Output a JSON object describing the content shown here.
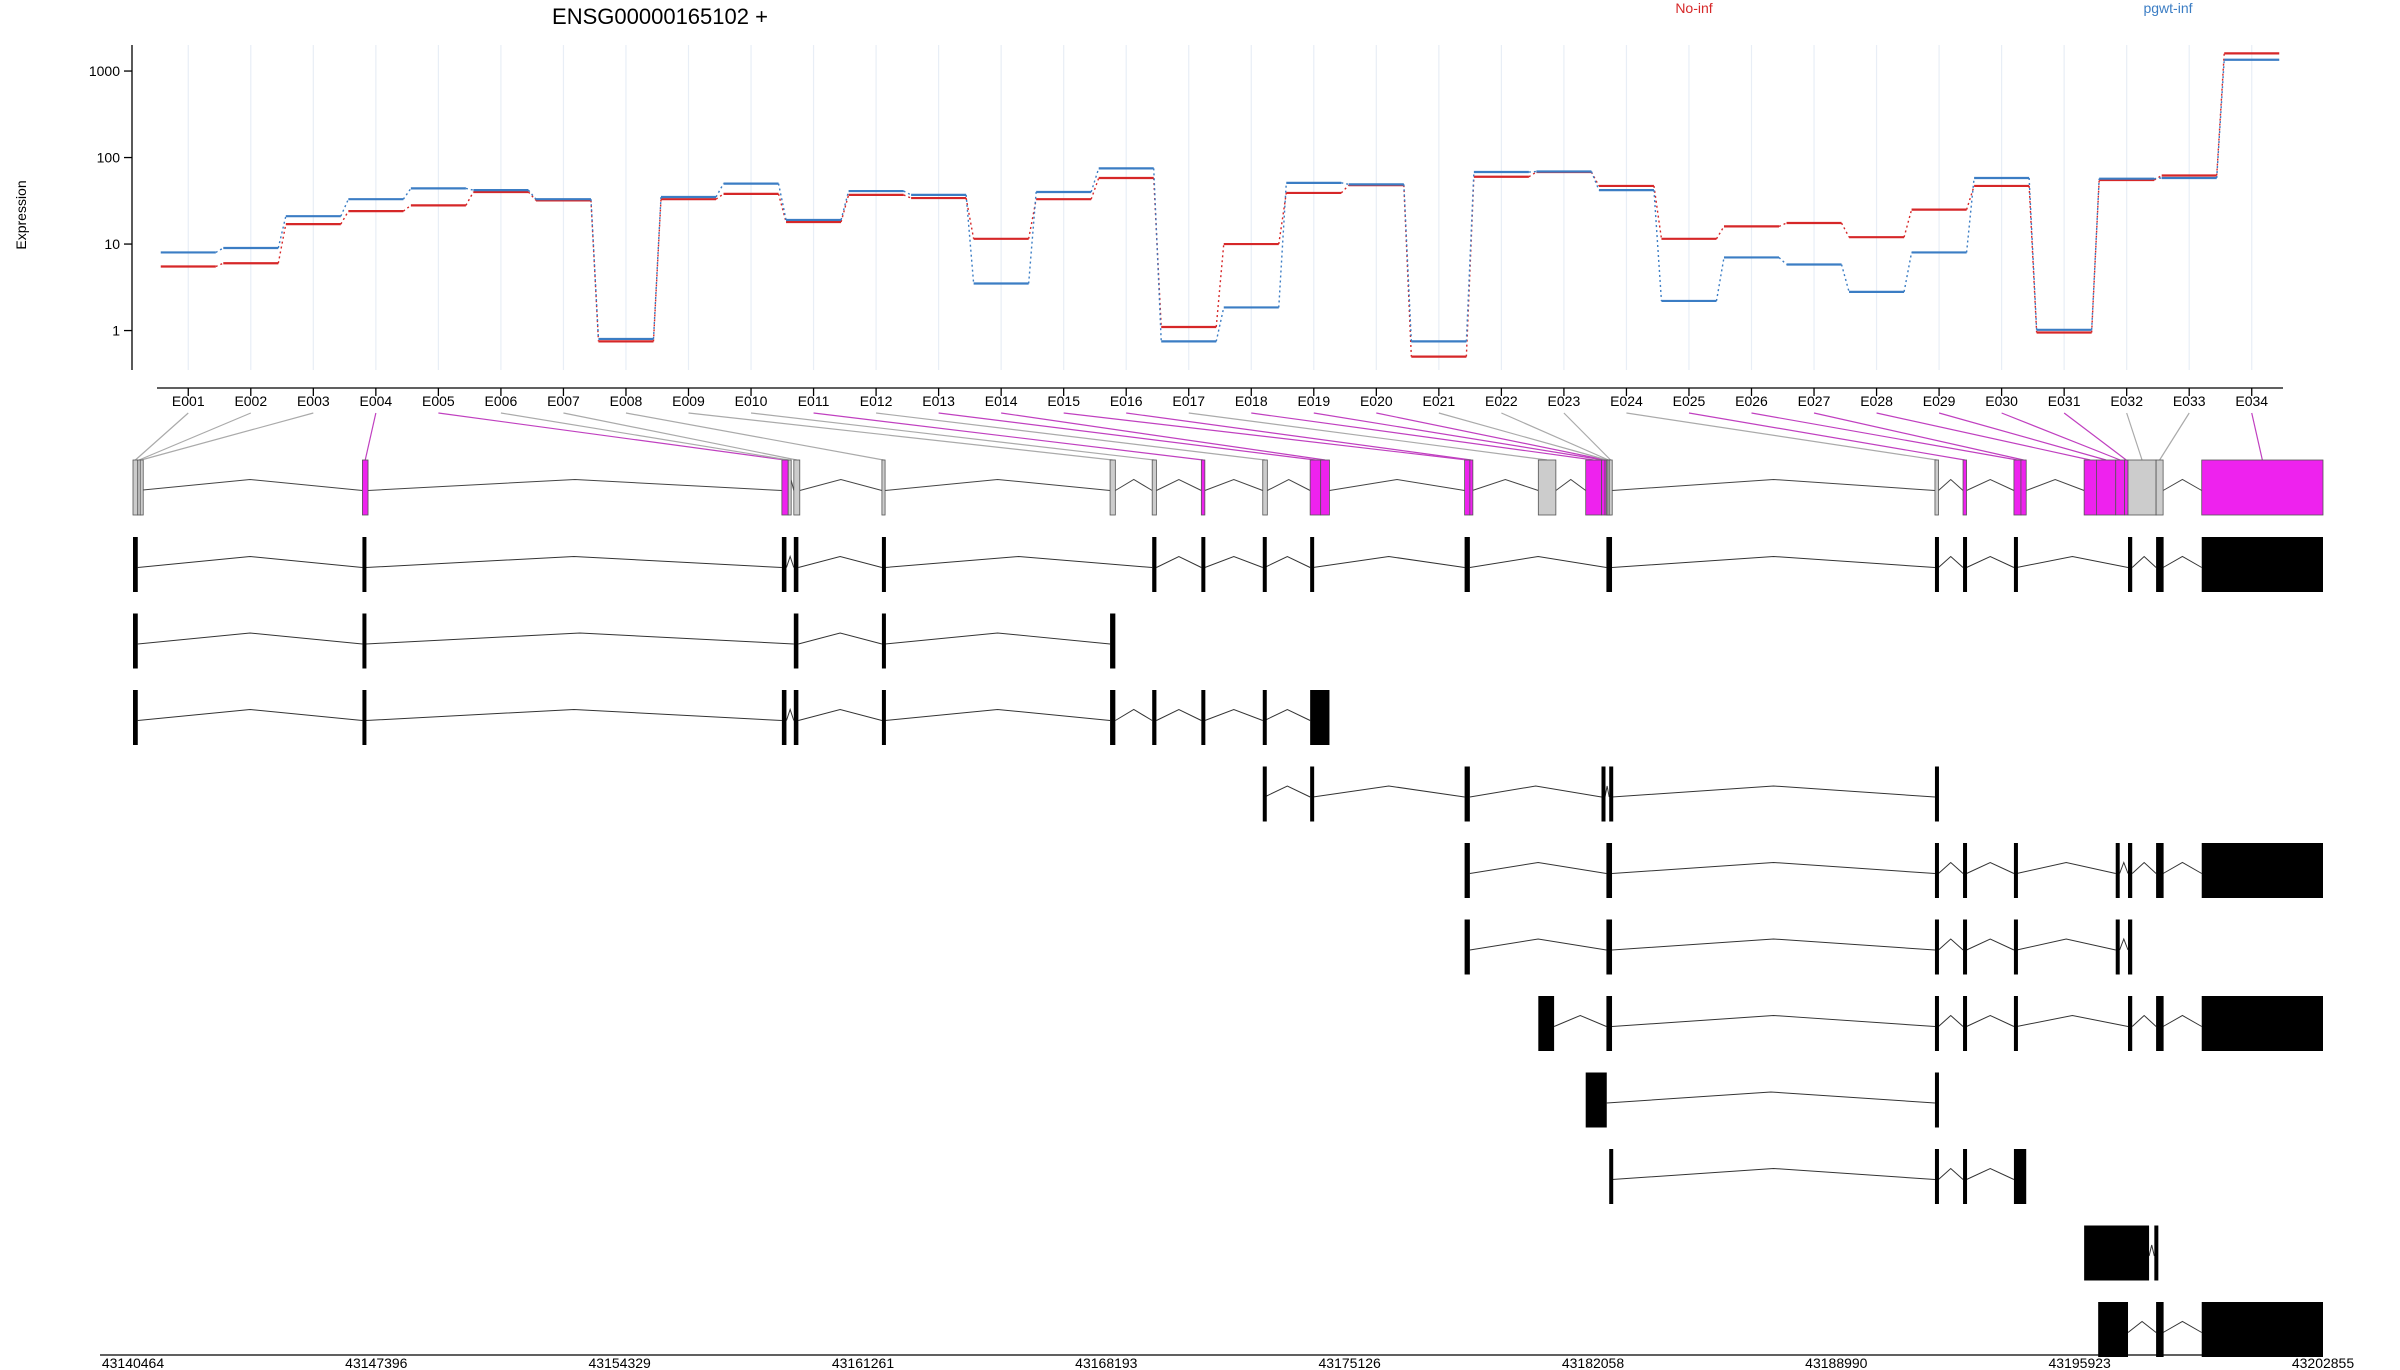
{
  "colors": {
    "no_inf": "#d62728",
    "pgwt_inf": "#3b7dc4",
    "highlight_exon": "#ee22ee",
    "plain_exon": "#cccccc",
    "transcript_exon": "#000000",
    "grid": "#e8eef6"
  },
  "chart_data": {
    "type": "line",
    "title": "ENSG00000165102 +",
    "ylabel": "Expression",
    "yscale": "log",
    "ylim": [
      0.35,
      2000
    ],
    "yticks": [
      1,
      10,
      100,
      1000
    ],
    "ytick_labels": [
      "1",
      "10",
      "100",
      "1000"
    ],
    "grid": true,
    "legend": [
      "No-inf",
      "pgwt-inf"
    ],
    "legend_placement": "top-right",
    "categories": [
      "E001",
      "E002",
      "E003",
      "E004",
      "E005",
      "E006",
      "E007",
      "E008",
      "E009",
      "E010",
      "E011",
      "E012",
      "E013",
      "E014",
      "E015",
      "E016",
      "E017",
      "E018",
      "E019",
      "E020",
      "E021",
      "E022",
      "E023",
      "E024",
      "E025",
      "E026",
      "E027",
      "E028",
      "E029",
      "E030",
      "E031",
      "E032",
      "E033",
      "E034"
    ],
    "series": [
      {
        "name": "No-inf",
        "color": "#d62728",
        "values": [
          5.5,
          6,
          17,
          24,
          28,
          40,
          32,
          0.75,
          33,
          38,
          18,
          37,
          34,
          11.5,
          33,
          58,
          1.1,
          10,
          39,
          48,
          0.5,
          60,
          68,
          47,
          11.5,
          16,
          17.5,
          12,
          25,
          47,
          0.95,
          55,
          62,
          1600
        ]
      },
      {
        "name": "pgwt-inf",
        "color": "#3b7dc4",
        "values": [
          8,
          9,
          21,
          33,
          44,
          42,
          33,
          0.8,
          35,
          50,
          19,
          41,
          37,
          3.5,
          40,
          75,
          0.75,
          1.85,
          51,
          49,
          0.75,
          68,
          69,
          42,
          2.2,
          7,
          5.8,
          2.8,
          8,
          58,
          1.02,
          57,
          58,
          1350
        ]
      }
    ],
    "genomic_axis": {
      "min": 43140464,
      "max": 43202855,
      "tick_values": [
        43140464,
        43147396,
        43154329,
        43161261,
        43168193,
        43175126,
        43182058,
        43188990,
        43195923,
        43202855
      ],
      "tick_labels": [
        "43140464",
        "43147396",
        "43154329",
        "43161261",
        "43168193",
        "43175126",
        "43182058",
        "43188990",
        "43195923",
        "43202855"
      ]
    },
    "exon_bins": [
      {
        "id": "E001",
        "start": 43140464,
        "end": 43140600,
        "highlight": false
      },
      {
        "id": "E002",
        "start": 43140600,
        "end": 43140670,
        "highlight": false
      },
      {
        "id": "E003",
        "start": 43140670,
        "end": 43140720,
        "highlight": false
      },
      {
        "id": "E004",
        "start": 43147000,
        "end": 43147160,
        "highlight": true
      },
      {
        "id": "E005",
        "start": 43158950,
        "end": 43159130,
        "highlight": true
      },
      {
        "id": "E006",
        "start": 43159130,
        "end": 43159160,
        "highlight": false
      },
      {
        "id": "E007",
        "start": 43159290,
        "end": 43159460,
        "highlight": false
      },
      {
        "id": "E008",
        "start": 43161800,
        "end": 43161890,
        "highlight": false
      },
      {
        "id": "E009",
        "start": 43168300,
        "end": 43168450,
        "highlight": false
      },
      {
        "id": "E010",
        "start": 43169500,
        "end": 43169620,
        "highlight": false
      },
      {
        "id": "E011",
        "start": 43170900,
        "end": 43171000,
        "highlight": true
      },
      {
        "id": "E012",
        "start": 43172650,
        "end": 43172780,
        "highlight": false
      },
      {
        "id": "E013",
        "start": 43174000,
        "end": 43174300,
        "highlight": true
      },
      {
        "id": "E014",
        "start": 43174300,
        "end": 43174550,
        "highlight": true
      },
      {
        "id": "E015",
        "start": 43178400,
        "end": 43178550,
        "highlight": true
      },
      {
        "id": "E016",
        "start": 43178550,
        "end": 43178620,
        "highlight": true
      },
      {
        "id": "E017",
        "start": 43180500,
        "end": 43181000,
        "highlight": false
      },
      {
        "id": "E018",
        "start": 43181850,
        "end": 43182300,
        "highlight": true
      },
      {
        "id": "E019",
        "start": 43182300,
        "end": 43182400,
        "highlight": true
      },
      {
        "id": "E020",
        "start": 43182400,
        "end": 43182440,
        "highlight": true
      },
      {
        "id": "E021",
        "start": 43182440,
        "end": 43182480,
        "highlight": false
      },
      {
        "id": "E022",
        "start": 43182480,
        "end": 43182520,
        "highlight": false
      },
      {
        "id": "E023",
        "start": 43182520,
        "end": 43182600,
        "highlight": false
      },
      {
        "id": "E024",
        "start": 43191800,
        "end": 43191900,
        "highlight": false
      },
      {
        "id": "E025",
        "start": 43192600,
        "end": 43192700,
        "highlight": true
      },
      {
        "id": "E026",
        "start": 43194050,
        "end": 43194250,
        "highlight": true
      },
      {
        "id": "E027",
        "start": 43194250,
        "end": 43194400,
        "highlight": true
      },
      {
        "id": "E028",
        "start": 43196050,
        "end": 43196400,
        "highlight": true
      },
      {
        "id": "E029",
        "start": 43196400,
        "end": 43196950,
        "highlight": true
      },
      {
        "id": "E030",
        "start": 43196950,
        "end": 43197200,
        "highlight": true
      },
      {
        "id": "E031",
        "start": 43197200,
        "end": 43197300,
        "highlight": true
      },
      {
        "id": "E032",
        "start": 43197300,
        "end": 43198100,
        "highlight": false
      },
      {
        "id": "E033",
        "start": 43198100,
        "end": 43198300,
        "highlight": false
      },
      {
        "id": "E034",
        "start": 43199400,
        "end": 43202855,
        "highlight": true
      }
    ],
    "gene_model_exons": [
      [
        43140464,
        43140600
      ],
      [
        43147000,
        43147160
      ],
      [
        43158950,
        43159130
      ],
      [
        43159290,
        43159460
      ],
      [
        43161800,
        43161890
      ],
      [
        43168300,
        43168450
      ],
      [
        43169500,
        43169620
      ],
      [
        43170900,
        43171000
      ],
      [
        43172650,
        43172780
      ],
      [
        43174000,
        43174550
      ],
      [
        43178400,
        43178620
      ],
      [
        43180500,
        43181000
      ],
      [
        43181850,
        43182300
      ],
      [
        43182300,
        43182520
      ],
      [
        43182520,
        43182600
      ],
      [
        43191800,
        43191900
      ],
      [
        43192600,
        43192700
      ],
      [
        43194050,
        43194400
      ],
      [
        43196050,
        43197200
      ],
      [
        43197200,
        43197300
      ],
      [
        43197300,
        43198100
      ],
      [
        43198100,
        43198300
      ],
      [
        43199400,
        43202855
      ]
    ],
    "transcripts": [
      [
        [
          43140464,
          43140600
        ],
        [
          43147000,
          43147100
        ],
        [
          43158950,
          43159080
        ],
        [
          43159290,
          43159420
        ],
        [
          43161800,
          43161890
        ],
        [
          43169500,
          43169620
        ],
        [
          43170900,
          43171000
        ],
        [
          43172650,
          43172700
        ],
        [
          43174000,
          43174080
        ],
        [
          43178400,
          43178550
        ],
        [
          43182440,
          43182600
        ],
        [
          43191800,
          43191900
        ],
        [
          43192600,
          43192700
        ],
        [
          43194050,
          43194130
        ],
        [
          43197300,
          43197420
        ],
        [
          43198100,
          43198170
        ],
        [
          43198200,
          43198300
        ],
        [
          43199400,
          43202855
        ]
      ],
      [
        [
          43140464,
          43140600
        ],
        [
          43147000,
          43147100
        ],
        [
          43159290,
          43159420
        ],
        [
          43161800,
          43161890
        ],
        [
          43168300,
          43168450
        ]
      ],
      [
        [
          43140464,
          43140600
        ],
        [
          43147000,
          43147100
        ],
        [
          43158950,
          43159080
        ],
        [
          43159290,
          43159420
        ],
        [
          43161800,
          43161890
        ],
        [
          43168300,
          43168450
        ],
        [
          43169500,
          43169620
        ],
        [
          43170900,
          43171000
        ],
        [
          43172650,
          43172700
        ],
        [
          43174000,
          43174550
        ]
      ],
      [
        [
          43172650,
          43172700
        ],
        [
          43174000,
          43174080
        ],
        [
          43178400,
          43178550
        ],
        [
          43182300,
          43182400
        ],
        [
          43182520,
          43182600
        ],
        [
          43191800,
          43191900
        ]
      ],
      [
        [
          43178400,
          43178550
        ],
        [
          43182440,
          43182600
        ],
        [
          43191800,
          43191900
        ],
        [
          43192600,
          43192700
        ],
        [
          43194050,
          43194130
        ],
        [
          43196950,
          43197060
        ],
        [
          43197300,
          43197420
        ],
        [
          43198100,
          43198170
        ],
        [
          43198200,
          43198300
        ],
        [
          43199400,
          43202855
        ]
      ],
      [
        [
          43178400,
          43178550
        ],
        [
          43182440,
          43182600
        ],
        [
          43191800,
          43191900
        ],
        [
          43192600,
          43192700
        ],
        [
          43194050,
          43194130
        ],
        [
          43196950,
          43197060
        ],
        [
          43197300,
          43197420
        ]
      ],
      [
        [
          43180500,
          43180950
        ],
        [
          43182440,
          43182600
        ],
        [
          43191800,
          43191900
        ],
        [
          43192600,
          43192700
        ],
        [
          43194050,
          43194130
        ],
        [
          43197300,
          43197420
        ],
        [
          43198100,
          43198170
        ],
        [
          43198200,
          43198300
        ],
        [
          43199400,
          43202855
        ]
      ],
      [
        [
          43181850,
          43182450
        ],
        [
          43191800,
          43191900
        ]
      ],
      [
        [
          43182520,
          43182600
        ],
        [
          43191800,
          43191900
        ],
        [
          43192600,
          43192700
        ],
        [
          43194050,
          43194400
        ]
      ],
      [
        [
          43196050,
          43197900
        ],
        [
          43198050,
          43198120
        ]
      ],
      [
        [
          43196450,
          43197300
        ],
        [
          43198100,
          43198170
        ],
        [
          43198200,
          43198300
        ],
        [
          43199400,
          43202855
        ]
      ]
    ]
  }
}
